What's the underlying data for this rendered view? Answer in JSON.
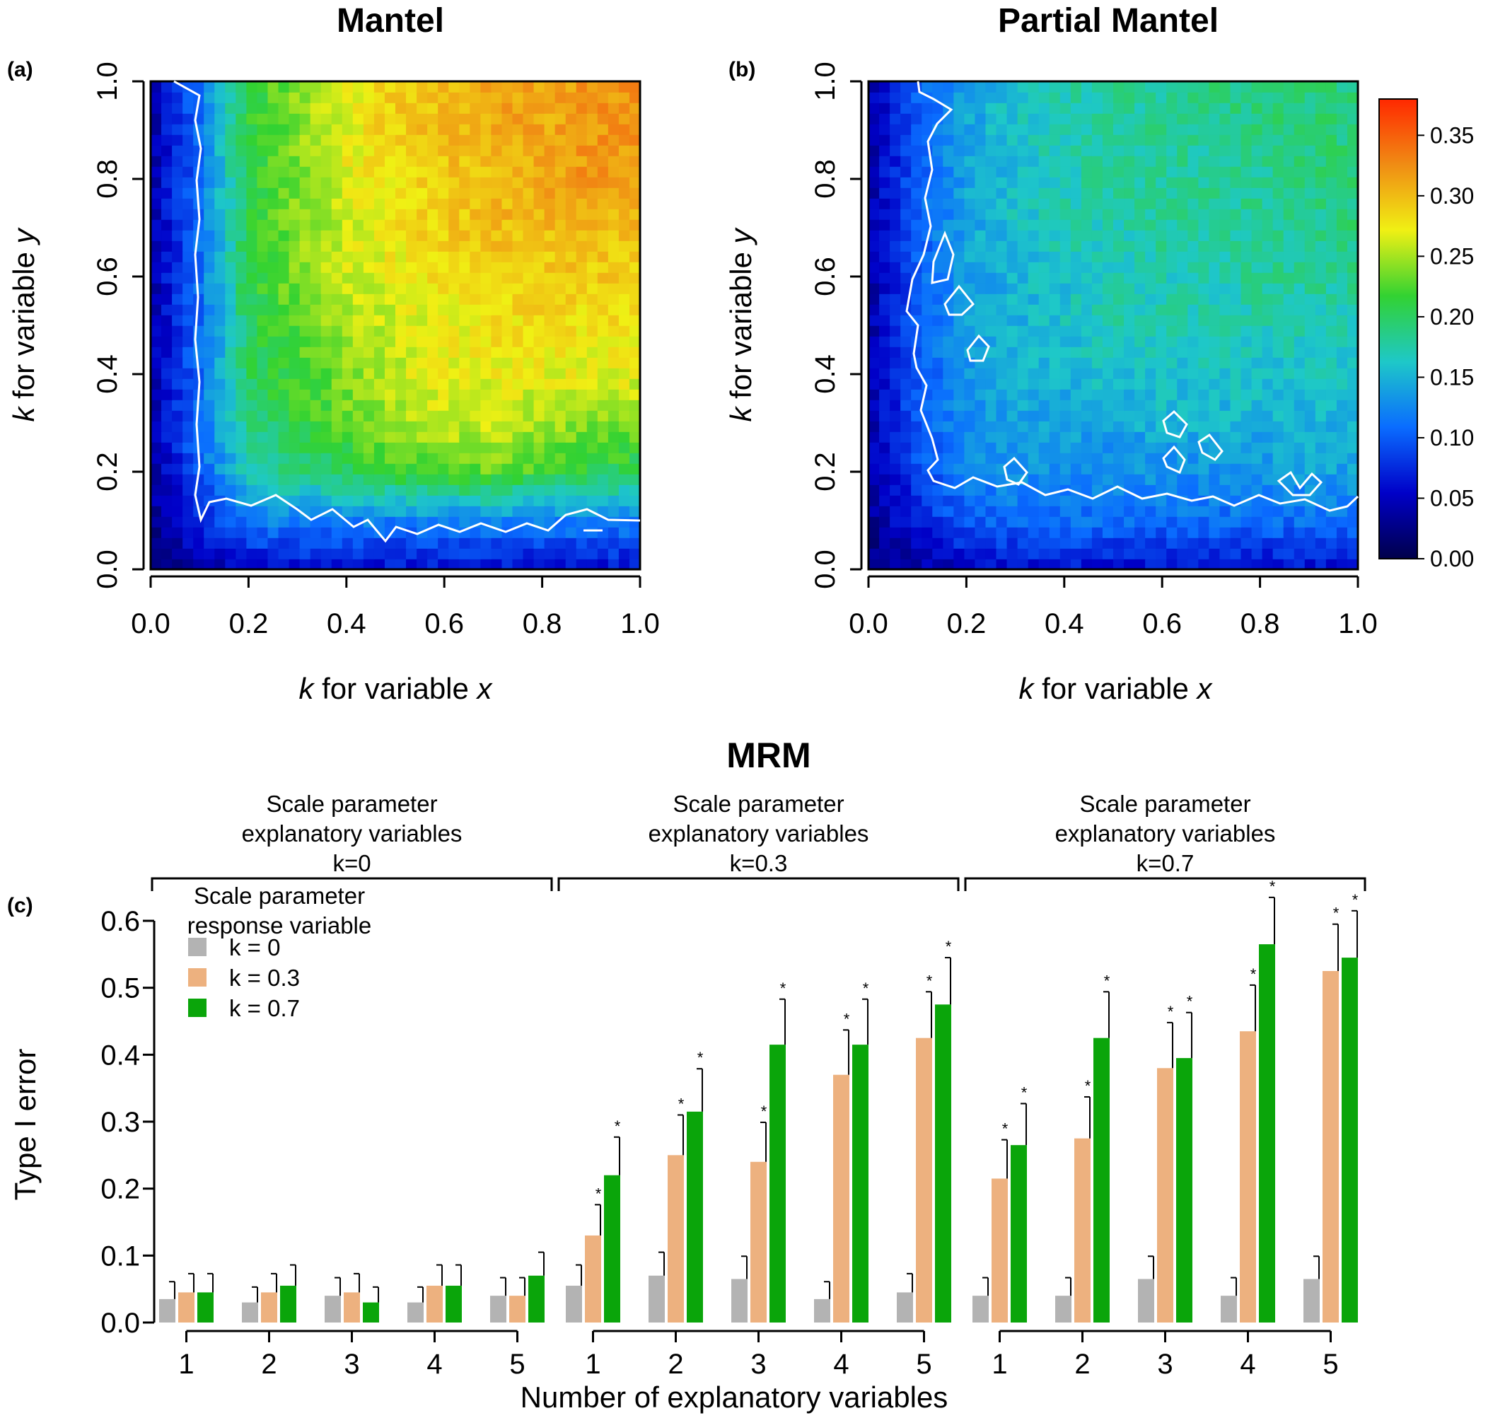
{
  "panels": {
    "a": {
      "label": "(a)",
      "title": "Mantel",
      "xlabel_italic": "k",
      "xlabel_rest": " for variable ",
      "xlabel_var": "x",
      "ylabel_italic": "k",
      "ylabel_rest": " for variable ",
      "ylabel_var": "y"
    },
    "b": {
      "label": "(b)",
      "title": "Partial Mantel",
      "xlabel_italic": "k",
      "xlabel_rest": " for variable ",
      "xlabel_var": "x",
      "ylabel_italic": "k",
      "ylabel_rest": " for variable ",
      "ylabel_var": "y"
    },
    "c": {
      "label": "(c)",
      "title": "MRM",
      "ylabel": "Type I error",
      "xlabel": "Number of explanatory variables"
    }
  },
  "colorbar": {
    "ticks": [
      "0.00",
      "0.05",
      "0.10",
      "0.15",
      "0.20",
      "0.25",
      "0.30",
      "0.35"
    ],
    "colors": [
      "#00004a",
      "#0000c8",
      "#0a6cff",
      "#1ec8c8",
      "#32d232",
      "#f0f014",
      "#f08c14",
      "#ff2800"
    ]
  },
  "chart_data": [
    {
      "type": "heatmap",
      "panel": "a",
      "title": "Mantel",
      "xlabel": "k for variable x",
      "ylabel": "k for variable y",
      "xlim": [
        0,
        1
      ],
      "ylim": [
        0,
        1
      ],
      "x_ticks": [
        "0.0",
        "0.2",
        "0.4",
        "0.6",
        "0.8",
        "1.0"
      ],
      "y_ticks": [
        "0.0",
        "0.2",
        "0.4",
        "0.6",
        "0.8",
        "1.0"
      ],
      "grid_x": [
        0.0,
        0.1,
        0.2,
        0.3,
        0.4,
        0.5,
        0.6,
        0.7,
        0.8,
        0.9,
        1.0
      ],
      "grid_y": [
        0.0,
        0.1,
        0.2,
        0.3,
        0.4,
        0.5,
        0.6,
        0.7,
        0.8,
        0.9,
        1.0
      ],
      "z_rows_from_y0": [
        [
          0.02,
          0.04,
          0.05,
          0.06,
          0.06,
          0.06,
          0.06,
          0.06,
          0.06,
          0.06,
          0.06
        ],
        [
          0.03,
          0.07,
          0.12,
          0.12,
          0.12,
          0.12,
          0.12,
          0.12,
          0.12,
          0.12,
          0.12
        ],
        [
          0.04,
          0.1,
          0.17,
          0.19,
          0.2,
          0.22,
          0.23,
          0.23,
          0.22,
          0.21,
          0.2
        ],
        [
          0.04,
          0.11,
          0.19,
          0.21,
          0.23,
          0.25,
          0.26,
          0.26,
          0.25,
          0.24,
          0.24
        ],
        [
          0.04,
          0.11,
          0.2,
          0.22,
          0.24,
          0.26,
          0.27,
          0.27,
          0.27,
          0.27,
          0.27
        ],
        [
          0.04,
          0.11,
          0.2,
          0.23,
          0.25,
          0.26,
          0.27,
          0.28,
          0.28,
          0.28,
          0.28
        ],
        [
          0.04,
          0.11,
          0.21,
          0.24,
          0.26,
          0.27,
          0.28,
          0.29,
          0.29,
          0.29,
          0.29
        ],
        [
          0.04,
          0.11,
          0.21,
          0.24,
          0.26,
          0.28,
          0.29,
          0.3,
          0.3,
          0.3,
          0.3
        ],
        [
          0.04,
          0.11,
          0.21,
          0.24,
          0.27,
          0.28,
          0.29,
          0.3,
          0.31,
          0.32,
          0.31
        ],
        [
          0.04,
          0.11,
          0.21,
          0.24,
          0.27,
          0.29,
          0.3,
          0.31,
          0.31,
          0.32,
          0.32
        ],
        [
          0.04,
          0.11,
          0.21,
          0.24,
          0.27,
          0.29,
          0.3,
          0.31,
          0.31,
          0.32,
          0.32
        ]
      ],
      "zlim": [
        0,
        0.38
      ]
    },
    {
      "type": "heatmap",
      "panel": "b",
      "title": "Partial Mantel",
      "xlabel": "k for variable x",
      "ylabel": "k for variable y",
      "xlim": [
        0,
        1
      ],
      "ylim": [
        0,
        1
      ],
      "x_ticks": [
        "0.0",
        "0.2",
        "0.4",
        "0.6",
        "0.8",
        "1.0"
      ],
      "y_ticks": [
        "0.0",
        "0.2",
        "0.4",
        "0.6",
        "0.8",
        "1.0"
      ],
      "grid_x": [
        0.0,
        0.1,
        0.2,
        0.3,
        0.4,
        0.5,
        0.6,
        0.7,
        0.8,
        0.9,
        1.0
      ],
      "grid_y": [
        0.0,
        0.1,
        0.2,
        0.3,
        0.4,
        0.5,
        0.6,
        0.7,
        0.8,
        0.9,
        1.0
      ],
      "z_rows_from_y0": [
        [
          0.02,
          0.04,
          0.05,
          0.06,
          0.06,
          0.06,
          0.06,
          0.06,
          0.06,
          0.06,
          0.06
        ],
        [
          0.03,
          0.07,
          0.1,
          0.11,
          0.11,
          0.11,
          0.11,
          0.11,
          0.11,
          0.11,
          0.11
        ],
        [
          0.04,
          0.09,
          0.12,
          0.13,
          0.13,
          0.13,
          0.13,
          0.13,
          0.13,
          0.14,
          0.14
        ],
        [
          0.04,
          0.1,
          0.13,
          0.14,
          0.14,
          0.14,
          0.15,
          0.15,
          0.15,
          0.15,
          0.15
        ],
        [
          0.04,
          0.1,
          0.13,
          0.15,
          0.15,
          0.16,
          0.16,
          0.16,
          0.16,
          0.16,
          0.16
        ],
        [
          0.04,
          0.1,
          0.14,
          0.15,
          0.16,
          0.17,
          0.17,
          0.17,
          0.17,
          0.17,
          0.17
        ],
        [
          0.04,
          0.1,
          0.14,
          0.15,
          0.16,
          0.17,
          0.17,
          0.17,
          0.18,
          0.18,
          0.18
        ],
        [
          0.04,
          0.1,
          0.14,
          0.16,
          0.17,
          0.17,
          0.18,
          0.18,
          0.18,
          0.18,
          0.19
        ],
        [
          0.04,
          0.1,
          0.14,
          0.16,
          0.17,
          0.18,
          0.18,
          0.18,
          0.18,
          0.19,
          0.19
        ],
        [
          0.04,
          0.1,
          0.14,
          0.16,
          0.17,
          0.18,
          0.18,
          0.18,
          0.19,
          0.19,
          0.19
        ],
        [
          0.04,
          0.1,
          0.14,
          0.16,
          0.17,
          0.18,
          0.18,
          0.19,
          0.19,
          0.19,
          0.19
        ]
      ],
      "zlim": [
        0,
        0.38
      ]
    },
    {
      "type": "bar",
      "panel": "c",
      "title": "MRM",
      "xlabel": "Number of explanatory variables",
      "ylabel": "Type I error",
      "ylim": [
        0,
        0.6
      ],
      "y_ticks": [
        "0.0",
        "0.1",
        "0.2",
        "0.3",
        "0.4",
        "0.5",
        "0.6"
      ],
      "legend_title": [
        "Scale parameter",
        "response variable"
      ],
      "legend_position": "top-left",
      "categories": [
        "1",
        "2",
        "3",
        "4",
        "5"
      ],
      "groups": [
        {
          "header": [
            "Scale parameter",
            "explanatory variables",
            "k=0"
          ],
          "series": [
            {
              "name": "k = 0",
              "color": "#b3b3b3",
              "values": [
                0.035,
                0.03,
                0.04,
                0.03,
                0.04
              ],
              "errors": [
                0.026,
                0.023,
                0.027,
                0.023,
                0.027
              ],
              "significant": [
                false,
                false,
                false,
                false,
                false
              ]
            },
            {
              "name": "k = 0.3",
              "color": "#edb17f",
              "values": [
                0.045,
                0.045,
                0.045,
                0.055,
                0.04
              ],
              "errors": [
                0.028,
                0.028,
                0.028,
                0.031,
                0.027
              ],
              "significant": [
                false,
                false,
                false,
                false,
                false
              ]
            },
            {
              "name": "k = 0.7",
              "color": "#0aa50a",
              "values": [
                0.045,
                0.055,
                0.03,
                0.055,
                0.07
              ],
              "errors": [
                0.028,
                0.031,
                0.023,
                0.031,
                0.035
              ],
              "significant": [
                false,
                false,
                false,
                false,
                false
              ]
            }
          ]
        },
        {
          "header": [
            "Scale parameter",
            "explanatory variables",
            "k=0.3"
          ],
          "series": [
            {
              "name": "k = 0",
              "color": "#b3b3b3",
              "values": [
                0.055,
                0.07,
                0.065,
                0.035,
                0.045
              ],
              "errors": [
                0.031,
                0.035,
                0.034,
                0.026,
                0.028
              ],
              "significant": [
                false,
                false,
                false,
                false,
                false
              ]
            },
            {
              "name": "k = 0.3",
              "color": "#edb17f",
              "values": [
                0.13,
                0.25,
                0.24,
                0.37,
                0.425
              ],
              "errors": [
                0.046,
                0.06,
                0.059,
                0.067,
                0.069
              ],
              "significant": [
                true,
                true,
                true,
                true,
                true
              ]
            },
            {
              "name": "k = 0.7",
              "color": "#0aa50a",
              "values": [
                0.22,
                0.315,
                0.415,
                0.415,
                0.475
              ],
              "errors": [
                0.057,
                0.064,
                0.068,
                0.068,
                0.07
              ],
              "significant": [
                true,
                true,
                true,
                true,
                true
              ]
            }
          ]
        },
        {
          "header": [
            "Scale parameter",
            "explanatory variables",
            "k=0.7"
          ],
          "series": [
            {
              "name": "k = 0",
              "color": "#b3b3b3",
              "values": [
                0.04,
                0.04,
                0.065,
                0.04,
                0.065
              ],
              "errors": [
                0.027,
                0.027,
                0.034,
                0.027,
                0.034
              ],
              "significant": [
                false,
                false,
                false,
                false,
                false
              ]
            },
            {
              "name": "k = 0.3",
              "color": "#edb17f",
              "values": [
                0.215,
                0.275,
                0.38,
                0.435,
                0.525
              ],
              "errors": [
                0.058,
                0.062,
                0.068,
                0.069,
                0.07
              ],
              "significant": [
                true,
                true,
                true,
                true,
                true
              ]
            },
            {
              "name": "k = 0.7",
              "color": "#0aa50a",
              "values": [
                0.265,
                0.425,
                0.395,
                0.565,
                0.545
              ],
              "errors": [
                0.062,
                0.069,
                0.068,
                0.07,
                0.07
              ],
              "significant": [
                true,
                true,
                true,
                true,
                true
              ]
            }
          ]
        }
      ],
      "significance_marker": "*"
    }
  ]
}
